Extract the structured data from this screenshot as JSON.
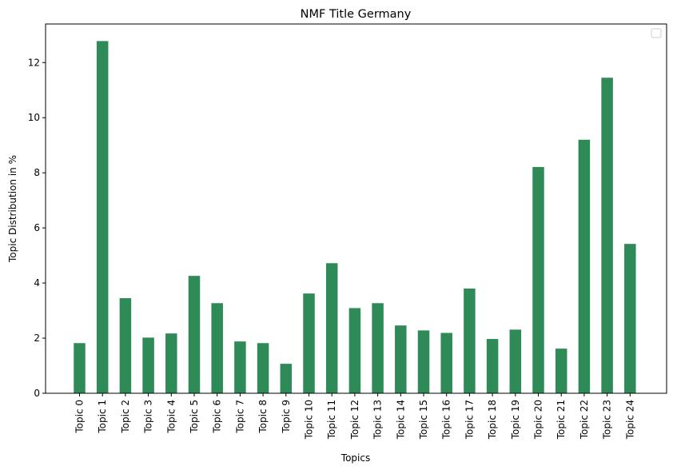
{
  "chart_data": {
    "type": "bar",
    "title": "NMF Title Germany",
    "xlabel": "Topics",
    "ylabel": "Topic Distribution in %",
    "categories": [
      "Topic 0",
      "Topic 1",
      "Topic 2",
      "Topic 3",
      "Topic 4",
      "Topic 5",
      "Topic 6",
      "Topic 7",
      "Topic 8",
      "Topic 9",
      "Topic 10",
      "Topic 11",
      "Topic 12",
      "Topic 13",
      "Topic 14",
      "Topic 15",
      "Topic 16",
      "Topic 17",
      "Topic 18",
      "Topic 19",
      "Topic 20",
      "Topic 21",
      "Topic 22",
      "Topic 23",
      "Topic 24"
    ],
    "values": [
      1.82,
      12.78,
      3.45,
      2.02,
      2.17,
      4.26,
      3.27,
      1.88,
      1.82,
      1.07,
      3.62,
      4.72,
      3.09,
      3.27,
      2.46,
      2.28,
      2.19,
      3.8,
      1.97,
      2.31,
      8.21,
      1.62,
      9.2,
      11.45,
      5.42
    ],
    "ylim": [
      0,
      13.4
    ],
    "yticks": [
      0,
      2,
      4,
      6,
      8,
      10,
      12
    ],
    "bar_color": "#2e8b57",
    "grid": false,
    "legend": "top-right (empty)"
  }
}
